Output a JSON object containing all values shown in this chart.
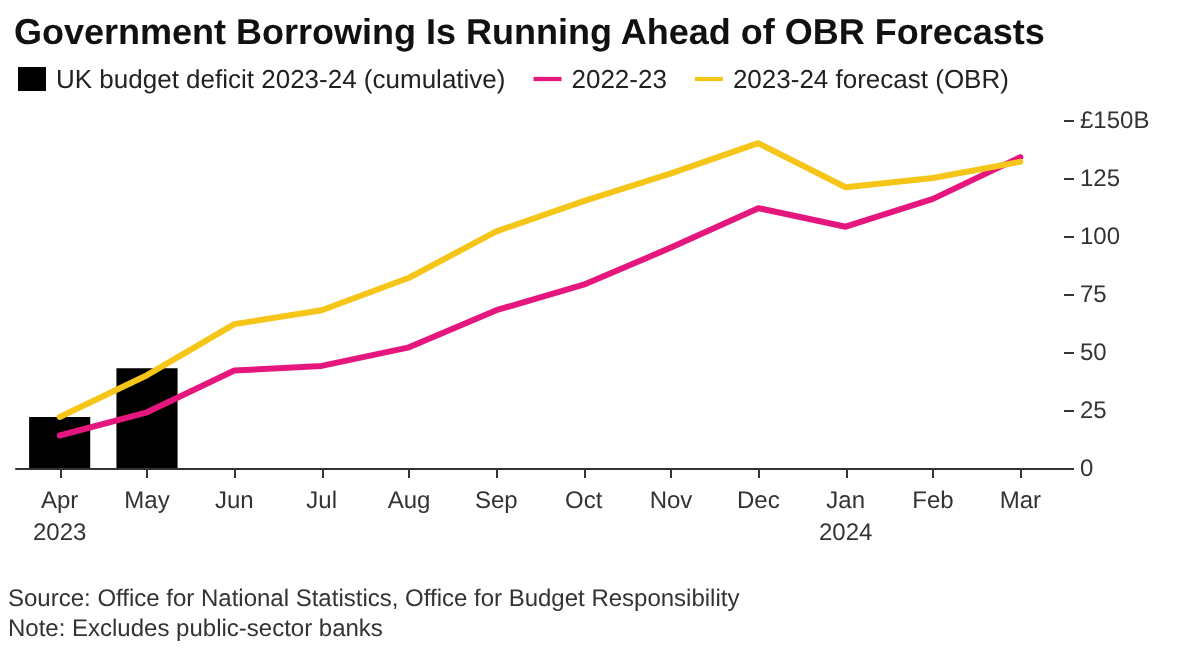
{
  "chart_data": {
    "type": "bar",
    "title": "Government Borrowing Is Running Ahead of OBR Forecasts",
    "categories": [
      "Apr\n2023",
      "May",
      "Jun",
      "Jul",
      "Aug",
      "Sep",
      "Oct",
      "Nov",
      "Dec",
      "Jan\n2024",
      "Feb",
      "Mar"
    ],
    "series": [
      {
        "name": "UK budget deficit 2023-24 (cumulative)",
        "color": "#000000",
        "values": [
          22,
          43,
          null,
          null,
          null,
          null,
          null,
          null,
          null,
          null,
          null,
          null
        ]
      },
      {
        "name": "2022-23",
        "type": "line",
        "color": "#e5177e",
        "values": [
          14,
          24,
          42,
          44,
          52,
          68,
          79,
          95,
          112,
          104,
          116,
          134
        ]
      },
      {
        "name": "2023-24 forecast (OBR)",
        "type": "line",
        "color": "#f5c518",
        "values": [
          22,
          40,
          62,
          68,
          82,
          102,
          115,
          127,
          140,
          121,
          125,
          132
        ]
      }
    ],
    "ylim": [
      0,
      150
    ],
    "yticks": [
      0,
      25,
      50,
      75,
      100,
      125,
      {
        "value": 150,
        "label": "£150B"
      }
    ],
    "grid": false,
    "legend": "top left",
    "marker": "none",
    "line_style": "solid",
    "annotations": [
      "Source: Office for National Statistics, Office for Budget Responsibility",
      "Note: Excludes public-sector banks"
    ]
  }
}
